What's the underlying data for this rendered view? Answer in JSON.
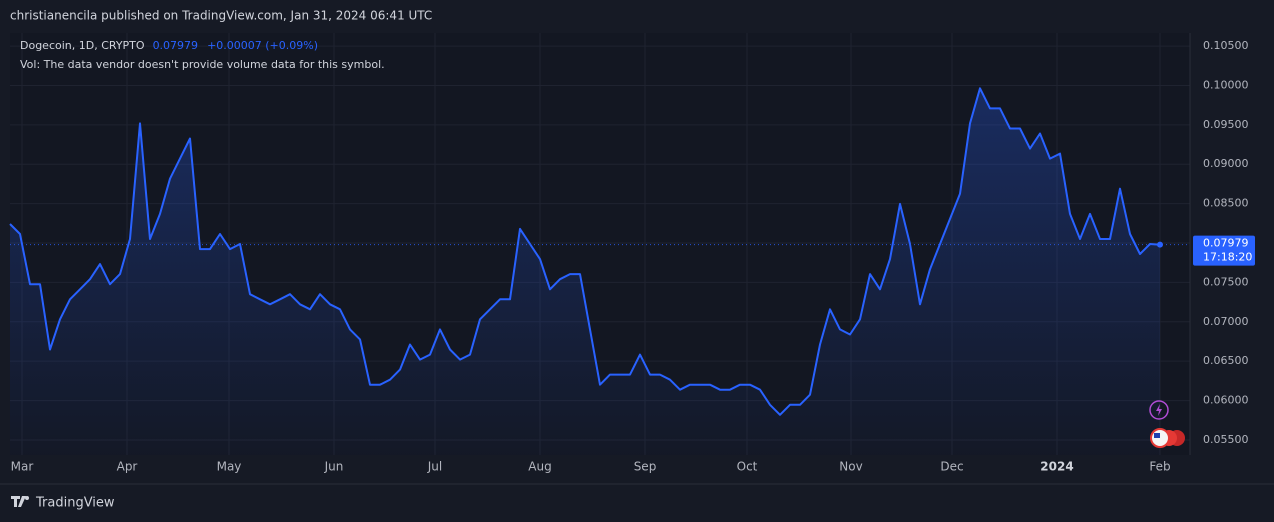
{
  "header": {
    "text": "christianencila published on TradingView.com, Jan 31, 2024 06:41 UTC"
  },
  "footer": {
    "brand": "TradingView"
  },
  "chart_data": {
    "type": "line",
    "legend": {
      "symbol": "Dogecoin, 1D, CRYPTO",
      "price": "0.07979",
      "change": "+0.00007 (+0.09%)",
      "note": "Vol: The data vendor doesn't provide volume data for this symbol."
    },
    "countdown": "17:18:20",
    "color": "#2962ff",
    "grid": true,
    "values": [
      0.08242,
      0.08115,
      0.07477,
      0.07477,
      0.06648,
      0.07031,
      0.07286,
      0.07413,
      0.07541,
      0.07732,
      0.07477,
      0.07605,
      0.08051,
      0.09518,
      0.08051,
      0.0837,
      0.08816,
      0.09071,
      0.09327,
      0.07923,
      0.07923,
      0.08115,
      0.07923,
      0.07987,
      0.0735,
      0.07286,
      0.07222,
      0.07286,
      0.0735,
      0.07222,
      0.07158,
      0.0735,
      0.07222,
      0.07158,
      0.06903,
      0.06776,
      0.06202,
      0.06202,
      0.06265,
      0.06393,
      0.06712,
      0.0652,
      0.06584,
      0.06903,
      0.06648,
      0.0652,
      0.06584,
      0.07031,
      0.07158,
      0.07286,
      0.07286,
      0.08179,
      0.07987,
      0.07796,
      0.07413,
      0.07541,
      0.07605,
      0.07605,
      0.06903,
      0.06202,
      0.06329,
      0.06329,
      0.06329,
      0.06584,
      0.06329,
      0.06329,
      0.06265,
      0.06138,
      0.06202,
      0.06202,
      0.06202,
      0.06138,
      0.06138,
      0.06202,
      0.06202,
      0.06138,
      0.05946,
      0.05819,
      0.05946,
      0.05946,
      0.06074,
      0.06712,
      0.07158,
      0.06903,
      0.06839,
      0.07031,
      0.07605,
      0.07413,
      0.07796,
      0.08497,
      0.07987,
      0.07222,
      0.07668,
      0.07987,
      0.08306,
      0.08625,
      0.09518,
      0.09964,
      0.09709,
      0.09709,
      0.09454,
      0.09454,
      0.09199,
      0.0939,
      0.09071,
      0.09135,
      0.0837,
      0.08051,
      0.0837,
      0.08051,
      0.08051,
      0.08689,
      0.08115,
      0.0786,
      0.07987,
      0.07979
    ],
    "xlim": [
      0,
      118
    ],
    "xticks": [
      {
        "value": 1.2,
        "label": "Mar"
      },
      {
        "value": 11.7,
        "label": "Apr"
      },
      {
        "value": 21.9,
        "label": "May"
      },
      {
        "value": 32.4,
        "label": "Jun"
      },
      {
        "value": 42.5,
        "label": "Jul"
      },
      {
        "value": 53,
        "label": "Aug"
      },
      {
        "value": 63.5,
        "label": "Sep"
      },
      {
        "value": 73.7,
        "label": "Oct"
      },
      {
        "value": 84.1,
        "label": "Nov"
      },
      {
        "value": 94.2,
        "label": "Dec"
      },
      {
        "value": 104.7,
        "label": "2024"
      },
      {
        "value": 115,
        "label": "Feb"
      }
    ],
    "ylim": [
      0.05309,
      0.10666
    ],
    "yticks": [
      {
        "value": 0.055,
        "label": "0.05500"
      },
      {
        "value": 0.06,
        "label": "0.06000"
      },
      {
        "value": 0.065,
        "label": "0.06500"
      },
      {
        "value": 0.07,
        "label": "0.07000"
      },
      {
        "value": 0.075,
        "label": "0.07500"
      },
      {
        "value": 0.08,
        "label": "0.08000"
      },
      {
        "value": 0.085,
        "label": "0.08500"
      },
      {
        "value": 0.09,
        "label": "0.09000"
      },
      {
        "value": 0.095,
        "label": "0.09500"
      },
      {
        "value": 0.1,
        "label": "0.10000"
      },
      {
        "value": 0.105,
        "label": "0.10500"
      }
    ]
  }
}
